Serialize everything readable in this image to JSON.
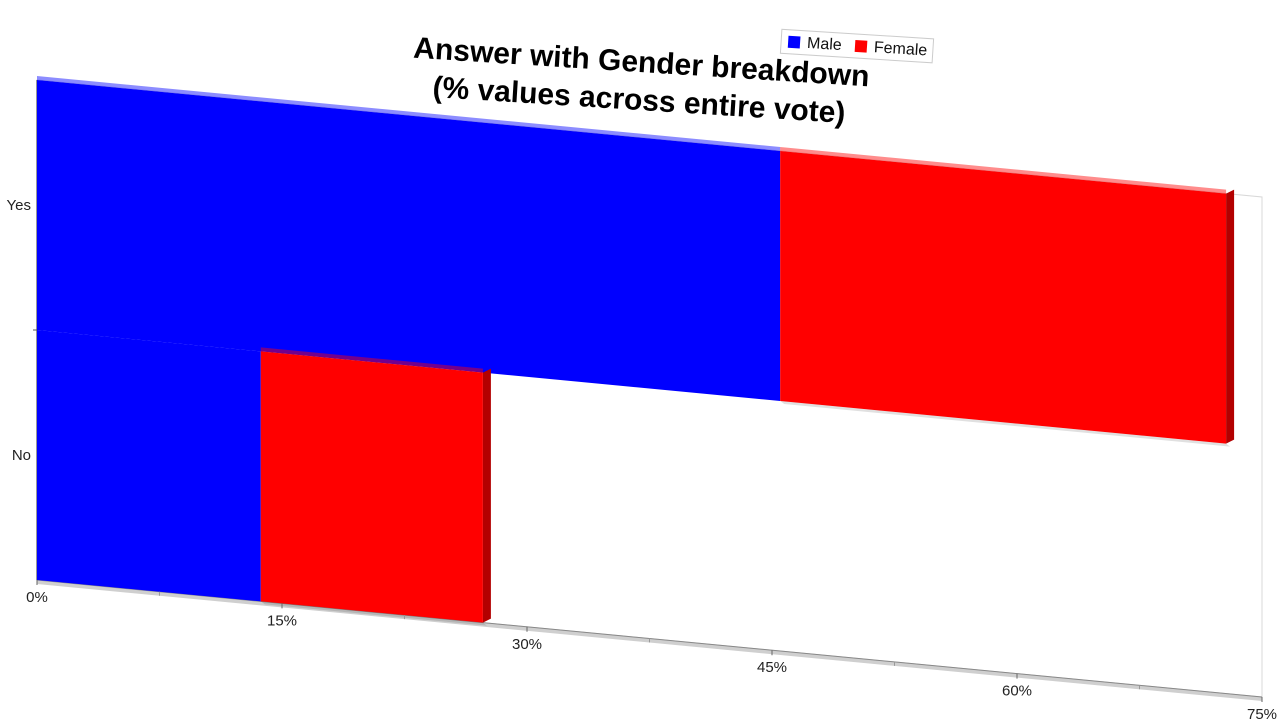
{
  "chart_data": {
    "type": "bar",
    "orientation": "horizontal",
    "stacked": true,
    "title": "Answer with Gender breakdown\n(% values across entire vote)",
    "categories": [
      "Yes",
      "No"
    ],
    "series": [
      {
        "name": "Male",
        "color": "#0000ff",
        "side_color": "#00009a",
        "values": [
          45.5,
          13.7
        ]
      },
      {
        "name": "Female",
        "color": "#ff0000",
        "side_color": "#b30000",
        "values": [
          27.3,
          13.6
        ]
      }
    ],
    "x_ticks": [
      "0%",
      "15%",
      "30%",
      "45%",
      "60%",
      "75%"
    ],
    "x_tick_values": [
      0,
      15,
      30,
      45,
      60,
      75
    ],
    "xlim": [
      0,
      75
    ],
    "xlabel": "",
    "ylabel": "",
    "grid": false,
    "legend_position": "top-right",
    "style": "3d-perspective"
  }
}
